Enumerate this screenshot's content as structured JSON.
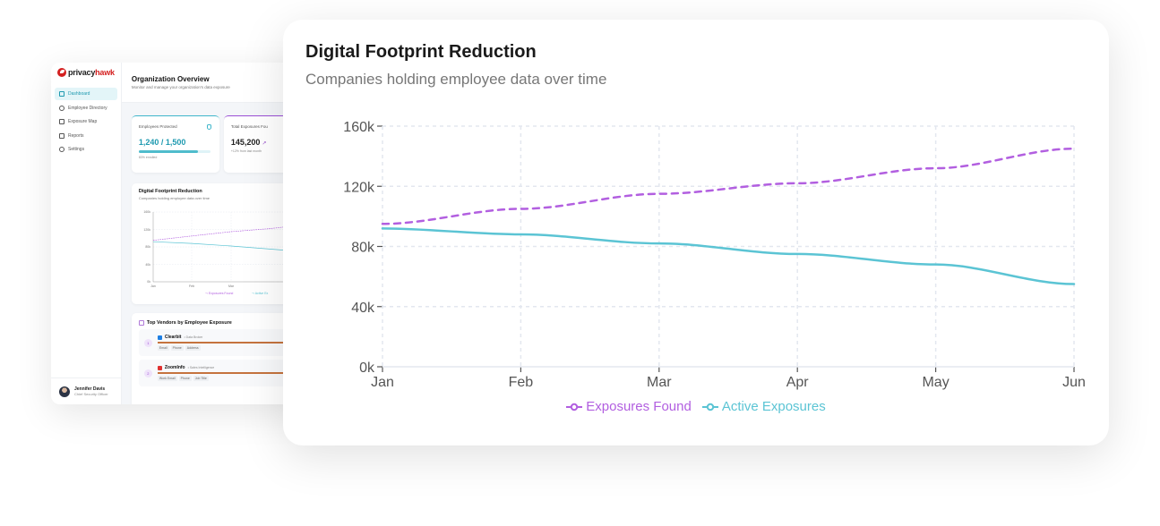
{
  "app": {
    "brand": {
      "name_part1": "privacy",
      "name_part2": "hawk",
      "accent": "#d42020"
    }
  },
  "sidebar": {
    "items": [
      {
        "label": "Dashboard",
        "icon": "grid-icon",
        "active": true
      },
      {
        "label": "Employee Directory",
        "icon": "users-icon",
        "active": false
      },
      {
        "label": "Exposure Map",
        "icon": "map-icon",
        "active": false
      },
      {
        "label": "Reports",
        "icon": "document-icon",
        "active": false
      },
      {
        "label": "Settings",
        "icon": "gear-icon",
        "active": false
      }
    ],
    "user": {
      "name": "Jennifer Davis",
      "role": "Chief Security Officer"
    }
  },
  "header": {
    "title": "Organization Overview",
    "subtitle": "Monitor and manage your organization's data exposure"
  },
  "kpis": [
    {
      "label": "Employees Protected",
      "value": "1,240 / 1,500",
      "note": "83% enrolled",
      "progress": 83,
      "accent": "#3fb6cb",
      "icon": "shield-icon"
    },
    {
      "label": "Total Exposures Fou",
      "value": "145,200",
      "note": "+12% from last month",
      "accent": "#9b4fd6",
      "icon": "trend-up-icon"
    }
  ],
  "mini_chart": {
    "title": "Digital Footprint Reduction",
    "subtitle": "Companies holding employee data over time",
    "legend": [
      "Exposures Found",
      "Active Ex"
    ]
  },
  "vendors": {
    "title": "Top Vendors by Employee Exposure",
    "items": [
      {
        "rank": "1",
        "name": "Clearbit",
        "category": "• Data Broker",
        "logo_color": "#1d7fe3",
        "tags": [
          "Email",
          "Phone",
          "Address"
        ]
      },
      {
        "rank": "2",
        "name": "ZoomInfo",
        "category": "• Sales Intelligence",
        "logo_color": "#e03131",
        "tags": [
          "Work Email",
          "Phone",
          "Job Title"
        ]
      }
    ]
  },
  "chart_card": {
    "title": "Digital Footprint Reduction",
    "subtitle": "Companies holding employee data over time"
  },
  "chart_data": {
    "type": "line",
    "title": "Digital Footprint Reduction",
    "subtitle": "Companies holding employee data over time",
    "categories": [
      "Jan",
      "Feb",
      "Mar",
      "Apr",
      "May",
      "Jun"
    ],
    "series": [
      {
        "name": "Exposures Found",
        "values": [
          95000,
          105000,
          115000,
          122000,
          132000,
          145000
        ],
        "color": "#b25fe0",
        "style": "dashed"
      },
      {
        "name": "Active Exposures",
        "values": [
          92000,
          88000,
          82000,
          75000,
          68000,
          55000
        ],
        "color": "#5bc4d4",
        "style": "solid"
      }
    ],
    "y_ticks": [
      "0k",
      "40k",
      "80k",
      "120k",
      "160k"
    ],
    "ylim": [
      0,
      160000
    ],
    "xlabel": "",
    "ylabel": "",
    "grid": true,
    "legend_position": "bottom"
  }
}
